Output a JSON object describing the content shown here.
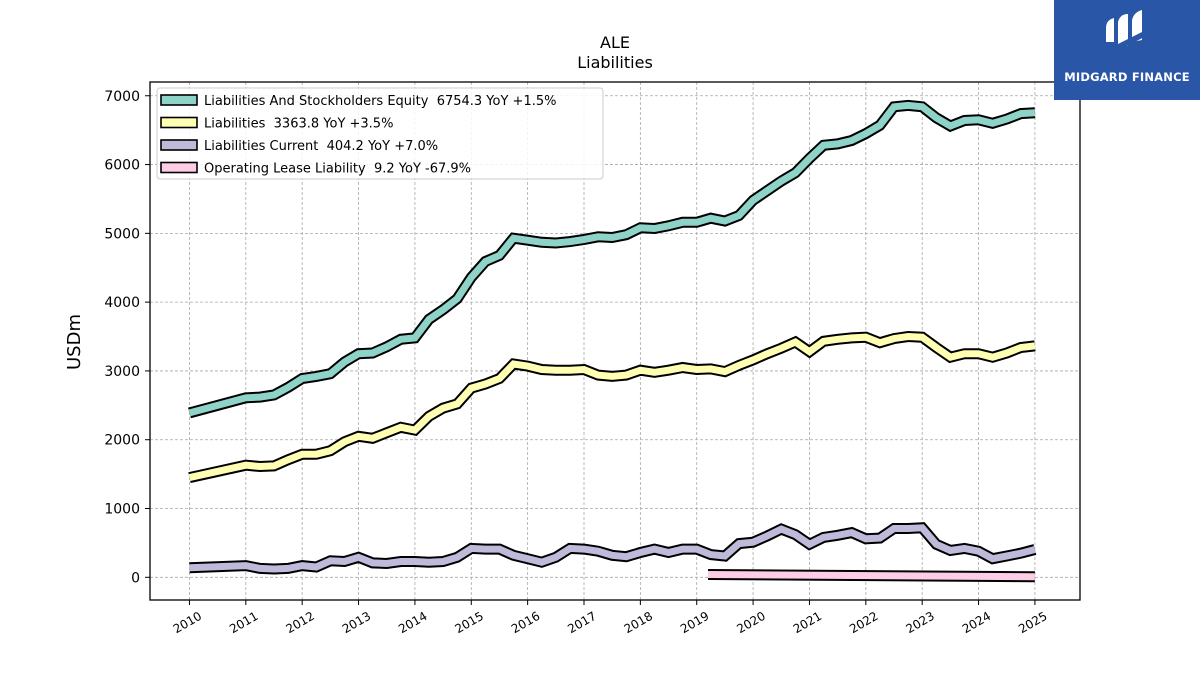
{
  "brand": {
    "name": "MIDGARD FINANCE",
    "color": "#2a56a8"
  },
  "chart_data": {
    "type": "line",
    "title": "ALE",
    "subtitle": "Liabilities",
    "ylabel": "USDm",
    "xlabel": "",
    "ylim": [
      -330,
      7200
    ],
    "xlim": [
      2009.3,
      2025.8
    ],
    "yticks": [
      0,
      1000,
      2000,
      3000,
      4000,
      5000,
      6000,
      7000
    ],
    "xticks": [
      "2010",
      "2011",
      "2012",
      "2013",
      "2014",
      "2015",
      "2016",
      "2017",
      "2018",
      "2019",
      "2020",
      "2021",
      "2022",
      "2023",
      "2024",
      "2025"
    ],
    "grid": true,
    "legend_position": "top-left",
    "series": [
      {
        "name": "Liabilities And Stockholders Equity  6754.3 YoY +1.5%",
        "color": "#8dd3c7",
        "x": [
          2010.0,
          2011.0,
          2011.25,
          2011.5,
          2011.75,
          2012.0,
          2012.25,
          2012.5,
          2012.75,
          2013.0,
          2013.25,
          2013.5,
          2013.75,
          2014.0,
          2014.25,
          2014.5,
          2014.75,
          2015.0,
          2015.25,
          2015.5,
          2015.75,
          2016.0,
          2016.25,
          2016.5,
          2016.75,
          2017.0,
          2017.25,
          2017.5,
          2017.75,
          2018.0,
          2018.25,
          2018.5,
          2018.75,
          2019.0,
          2019.25,
          2019.5,
          2019.75,
          2020.0,
          2020.25,
          2020.5,
          2020.75,
          2021.0,
          2021.25,
          2021.5,
          2021.75,
          2022.0,
          2022.25,
          2022.5,
          2022.75,
          2023.0,
          2023.25,
          2023.5,
          2023.75,
          2024.0,
          2024.25,
          2024.5,
          2024.75,
          2025.0
        ],
        "values": [
          2390,
          2610,
          2620,
          2650,
          2760,
          2890,
          2920,
          2960,
          3130,
          3250,
          3260,
          3350,
          3460,
          3480,
          3750,
          3890,
          4050,
          4360,
          4590,
          4680,
          4930,
          4900,
          4870,
          4860,
          4880,
          4910,
          4950,
          4940,
          4980,
          5080,
          5070,
          5110,
          5160,
          5160,
          5220,
          5180,
          5260,
          5480,
          5620,
          5760,
          5880,
          6090,
          6280,
          6300,
          6350,
          6450,
          6570,
          6840,
          6860,
          6840,
          6680,
          6560,
          6640,
          6650,
          6600,
          6660,
          6740,
          6754.3
        ]
      },
      {
        "name": "Liabilities  3363.8 YoY +3.5%",
        "color": "#ffffb3",
        "x": [
          2010.0,
          2011.0,
          2011.25,
          2011.5,
          2011.75,
          2012.0,
          2012.25,
          2012.5,
          2012.75,
          2013.0,
          2013.25,
          2013.5,
          2013.75,
          2014.0,
          2014.25,
          2014.5,
          2014.75,
          2015.0,
          2015.25,
          2015.5,
          2015.75,
          2016.0,
          2016.25,
          2016.5,
          2016.75,
          2017.0,
          2017.25,
          2017.5,
          2017.75,
          2018.0,
          2018.25,
          2018.5,
          2018.75,
          2019.0,
          2019.25,
          2019.5,
          2019.75,
          2020.0,
          2020.25,
          2020.5,
          2020.75,
          2021.0,
          2021.25,
          2021.5,
          2021.75,
          2022.0,
          2022.25,
          2022.5,
          2022.75,
          2023.0,
          2023.25,
          2023.5,
          2023.75,
          2024.0,
          2024.25,
          2024.5,
          2024.75,
          2025.0
        ],
        "values": [
          1450,
          1630,
          1610,
          1620,
          1710,
          1790,
          1790,
          1840,
          1970,
          2050,
          2020,
          2100,
          2180,
          2140,
          2340,
          2460,
          2520,
          2750,
          2810,
          2890,
          3100,
          3070,
          3020,
          3010,
          3010,
          3020,
          2940,
          2920,
          2940,
          3010,
          2980,
          3010,
          3050,
          3020,
          3030,
          2990,
          3080,
          3160,
          3250,
          3330,
          3420,
          3280,
          3430,
          3460,
          3480,
          3490,
          3410,
          3470,
          3500,
          3490,
          3340,
          3200,
          3250,
          3250,
          3200,
          3260,
          3340,
          3363.8
        ]
      },
      {
        "name": "Liabilities Current  404.2 YoY +7.0%",
        "color": "#bebada",
        "x": [
          2010.0,
          2011.0,
          2011.25,
          2011.5,
          2011.75,
          2012.0,
          2012.25,
          2012.5,
          2012.75,
          2013.0,
          2013.25,
          2013.5,
          2013.75,
          2014.0,
          2014.25,
          2014.5,
          2014.75,
          2015.0,
          2015.25,
          2015.5,
          2015.75,
          2016.0,
          2016.25,
          2016.5,
          2016.75,
          2017.0,
          2017.25,
          2017.5,
          2017.75,
          2018.0,
          2018.25,
          2018.5,
          2018.75,
          2019.0,
          2019.25,
          2019.5,
          2019.75,
          2020.0,
          2020.25,
          2020.5,
          2020.75,
          2021.0,
          2021.25,
          2021.5,
          2021.75,
          2022.0,
          2022.25,
          2022.5,
          2022.75,
          2023.0,
          2023.25,
          2023.5,
          2023.75,
          2024.0,
          2024.25,
          2024.5,
          2024.75,
          2025.0
        ],
        "values": [
          140,
          170,
          130,
          120,
          130,
          170,
          150,
          240,
          230,
          290,
          210,
          200,
          230,
          230,
          220,
          230,
          290,
          420,
          410,
          410,
          320,
          270,
          220,
          290,
          420,
          410,
          380,
          320,
          300,
          360,
          410,
          360,
          410,
          410,
          330,
          310,
          490,
          510,
          600,
          700,
          620,
          480,
          580,
          610,
          650,
          560,
          570,
          710,
          710,
          720,
          480,
          390,
          420,
          380,
          270,
          310,
          350,
          404.2
        ]
      },
      {
        "name": "Operating Lease Liability  9.2 YoY -67.9%",
        "color": "#fccde5",
        "x": [
          2019.2,
          2025.0
        ],
        "values": [
          40,
          9.2
        ]
      }
    ]
  }
}
